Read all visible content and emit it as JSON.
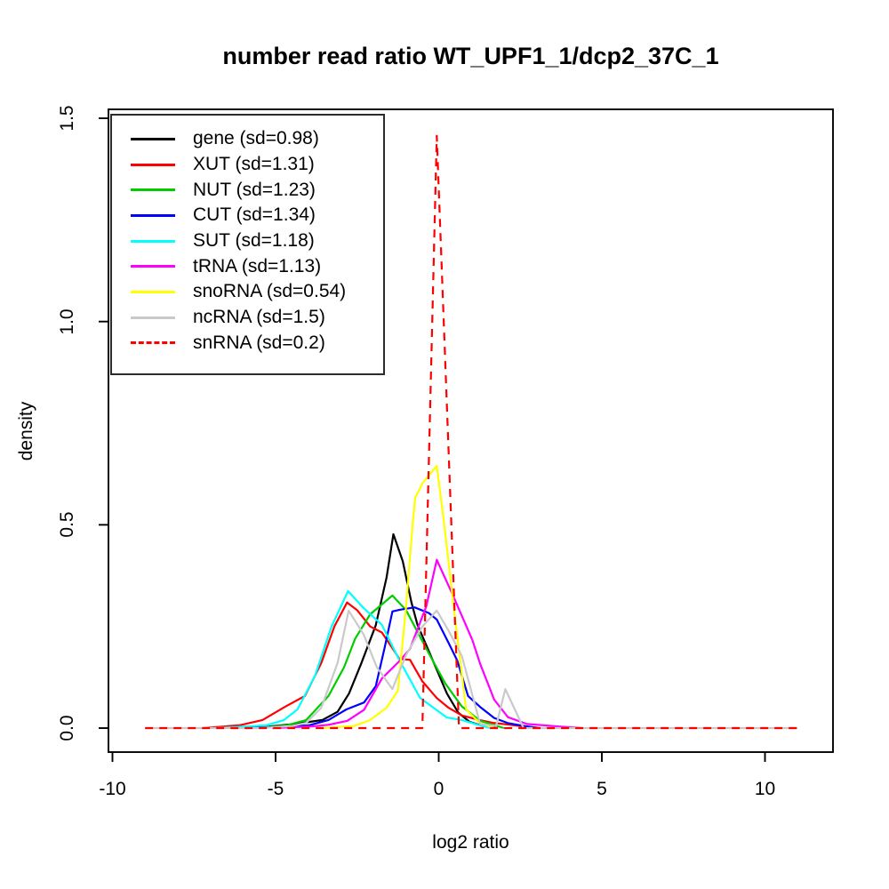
{
  "chart_data": {
    "type": "line",
    "title": "number read ratio WT_UPF1_1/dcp2_37C_1",
    "xlabel": "log2 ratio",
    "ylabel": "density",
    "xlim": [
      -10.1,
      12.1
    ],
    "ylim": [
      -0.06,
      1.52
    ],
    "grid": false,
    "legend_position": "top-left",
    "xticks": [
      {
        "v": -10,
        "label": "-10"
      },
      {
        "v": -5,
        "label": "-5"
      },
      {
        "v": 0,
        "label": "0"
      },
      {
        "v": 5,
        "label": "5"
      },
      {
        "v": 10,
        "label": "10"
      }
    ],
    "yticks": [
      {
        "v": 0,
        "label": "0.0"
      },
      {
        "v": 0.5,
        "label": "0.5"
      },
      {
        "v": 1.0,
        "label": "1.0"
      },
      {
        "v": 1.5,
        "label": "1.5"
      }
    ],
    "series": [
      {
        "id": "gene",
        "name": "gene (sd=0.98)",
        "color": "#000000",
        "dash": "solid",
        "points": [
          [
            -6.3,
            0
          ],
          [
            -5.2,
            0.004
          ],
          [
            -4.4,
            0.01
          ],
          [
            -3.56,
            0.02
          ],
          [
            -3.1,
            0.04
          ],
          [
            -2.75,
            0.085
          ],
          [
            -2.38,
            0.158
          ],
          [
            -1.93,
            0.253
          ],
          [
            -1.6,
            0.37
          ],
          [
            -1.39,
            0.477
          ],
          [
            -1.1,
            0.41
          ],
          [
            -0.84,
            0.31
          ],
          [
            -0.65,
            0.254
          ],
          [
            -0.2,
            0.17
          ],
          [
            0.25,
            0.085
          ],
          [
            0.6,
            0.038
          ],
          [
            0.95,
            0.015
          ],
          [
            1.4,
            0.004
          ],
          [
            1.8,
            0
          ]
        ]
      },
      {
        "id": "XUT",
        "name": "XUT (sd=1.31)",
        "color": "#FF0000",
        "dash": "solid",
        "points": [
          [
            -7.2,
            0
          ],
          [
            -6.1,
            0.007
          ],
          [
            -5.4,
            0.02
          ],
          [
            -4.7,
            0.053
          ],
          [
            -4.1,
            0.079
          ],
          [
            -3.6,
            0.16
          ],
          [
            -3.2,
            0.25
          ],
          [
            -2.81,
            0.309
          ],
          [
            -2.5,
            0.29
          ],
          [
            -2.1,
            0.25
          ],
          [
            -1.74,
            0.235
          ],
          [
            -1.2,
            0.17
          ],
          [
            -0.88,
            0.168
          ],
          [
            -0.5,
            0.115
          ],
          [
            -0.06,
            0.074
          ],
          [
            0.3,
            0.05
          ],
          [
            0.71,
            0.031
          ],
          [
            1.25,
            0.02
          ],
          [
            1.66,
            0.013
          ],
          [
            2.2,
            0.008
          ],
          [
            2.7,
            0.003
          ],
          [
            3.1,
            0
          ]
        ]
      },
      {
        "id": "NUT",
        "name": "NUT (sd=1.23)",
        "color": "#00CD00",
        "dash": "solid",
        "points": [
          [
            -5.6,
            0
          ],
          [
            -4.65,
            0.007
          ],
          [
            -4.06,
            0.02
          ],
          [
            -3.38,
            0.079
          ],
          [
            -2.9,
            0.15
          ],
          [
            -2.56,
            0.22
          ],
          [
            -2.1,
            0.28
          ],
          [
            -1.42,
            0.326
          ],
          [
            -1.0,
            0.29
          ],
          [
            -0.38,
            0.195
          ],
          [
            0.2,
            0.11
          ],
          [
            0.71,
            0.053
          ],
          [
            1.27,
            0.018
          ],
          [
            2.0,
            0
          ]
        ]
      },
      {
        "id": "CUT",
        "name": "CUT (sd=1.34)",
        "color": "#0000FF",
        "dash": "solid",
        "points": [
          [
            -5.9,
            0
          ],
          [
            -4.6,
            0.004
          ],
          [
            -3.97,
            0.007
          ],
          [
            -3.38,
            0.02
          ],
          [
            -2.83,
            0.046
          ],
          [
            -2.29,
            0.063
          ],
          [
            -1.93,
            0.103
          ],
          [
            -1.65,
            0.2
          ],
          [
            -1.42,
            0.287
          ],
          [
            -1.2,
            0.291
          ],
          [
            -0.74,
            0.297
          ],
          [
            -0.3,
            0.283
          ],
          [
            -0.06,
            0.267
          ],
          [
            0.3,
            0.21
          ],
          [
            0.57,
            0.166
          ],
          [
            0.9,
            0.079
          ],
          [
            1.27,
            0.052
          ],
          [
            1.7,
            0.025
          ],
          [
            2.13,
            0.012
          ],
          [
            2.63,
            0.005
          ],
          [
            3.1,
            0
          ]
        ]
      },
      {
        "id": "SUT",
        "name": "SUT (sd=1.18)",
        "color": "#00FFFF",
        "dash": "solid",
        "points": [
          [
            -6.8,
            0
          ],
          [
            -5.28,
            0.007
          ],
          [
            -4.74,
            0.02
          ],
          [
            -4.33,
            0.046
          ],
          [
            -3.79,
            0.129
          ],
          [
            -3.29,
            0.249
          ],
          [
            -2.78,
            0.337
          ],
          [
            -2.3,
            0.295
          ],
          [
            -1.74,
            0.254
          ],
          [
            -1.2,
            0.166
          ],
          [
            -0.57,
            0.074
          ],
          [
            0.25,
            0.026
          ],
          [
            0.71,
            0.02
          ],
          [
            1.2,
            0.008
          ],
          [
            1.6,
            0
          ]
        ]
      },
      {
        "id": "tRNA",
        "name": "tRNA (sd=1.13)",
        "color": "#FF00FF",
        "dash": "solid",
        "points": [
          [
            -5.1,
            0
          ],
          [
            -3.9,
            0.004
          ],
          [
            -3.38,
            0.008
          ],
          [
            -2.8,
            0.018
          ],
          [
            -2.29,
            0.045
          ],
          [
            -1.74,
            0.122
          ],
          [
            -1.2,
            0.165
          ],
          [
            -0.88,
            0.195
          ],
          [
            -0.38,
            0.3
          ],
          [
            -0.06,
            0.414
          ],
          [
            0.44,
            0.326
          ],
          [
            1.03,
            0.217
          ],
          [
            1.27,
            0.158
          ],
          [
            1.7,
            0.07
          ],
          [
            2.12,
            0.027
          ],
          [
            2.7,
            0.01
          ],
          [
            3.5,
            0.005
          ],
          [
            4.4,
            0
          ]
        ]
      },
      {
        "id": "snoRNA",
        "name": "snoRNA (sd=0.54)",
        "color": "#FFFF00",
        "dash": "solid",
        "points": [
          [
            -3.6,
            0
          ],
          [
            -2.6,
            0.005
          ],
          [
            -2.1,
            0.02
          ],
          [
            -1.6,
            0.05
          ],
          [
            -1.25,
            0.092
          ],
          [
            -1.0,
            0.3
          ],
          [
            -0.8,
            0.5
          ],
          [
            -0.72,
            0.567
          ],
          [
            -0.49,
            0.603
          ],
          [
            -0.06,
            0.645
          ],
          [
            0.14,
            0.52
          ],
          [
            0.5,
            0.27
          ],
          [
            0.84,
            0.046
          ],
          [
            1.25,
            0.013
          ],
          [
            1.7,
            0
          ]
        ]
      },
      {
        "id": "ncRNA",
        "name": "ncRNA (sd=1.5)",
        "color": "#C9C9C9",
        "dash": "solid",
        "points": [
          [
            -9,
            0
          ],
          [
            -5.5,
            0
          ],
          [
            -4.5,
            0.005
          ],
          [
            -4.06,
            0.013
          ],
          [
            -3.6,
            0.05
          ],
          [
            -3.1,
            0.16
          ],
          [
            -2.76,
            0.289
          ],
          [
            -2.3,
            0.23
          ],
          [
            -1.9,
            0.15
          ],
          [
            -1.42,
            0.096
          ],
          [
            -1.0,
            0.18
          ],
          [
            -0.5,
            0.25
          ],
          [
            -0.06,
            0.289
          ],
          [
            0.3,
            0.24
          ],
          [
            0.71,
            0.177
          ],
          [
            1.27,
            0.01
          ],
          [
            1.76,
            0.005
          ],
          [
            2.04,
            0.096
          ],
          [
            2.6,
            0
          ],
          [
            11,
            0
          ]
        ]
      },
      {
        "id": "snRNA",
        "name": "snRNA (sd=0.2)",
        "color": "#FF0000",
        "dash": "dashed",
        "points": [
          [
            -9,
            0
          ],
          [
            -0.5,
            0
          ],
          [
            -0.06,
            1.457
          ],
          [
            0.62,
            0
          ],
          [
            11,
            0
          ]
        ]
      }
    ]
  }
}
